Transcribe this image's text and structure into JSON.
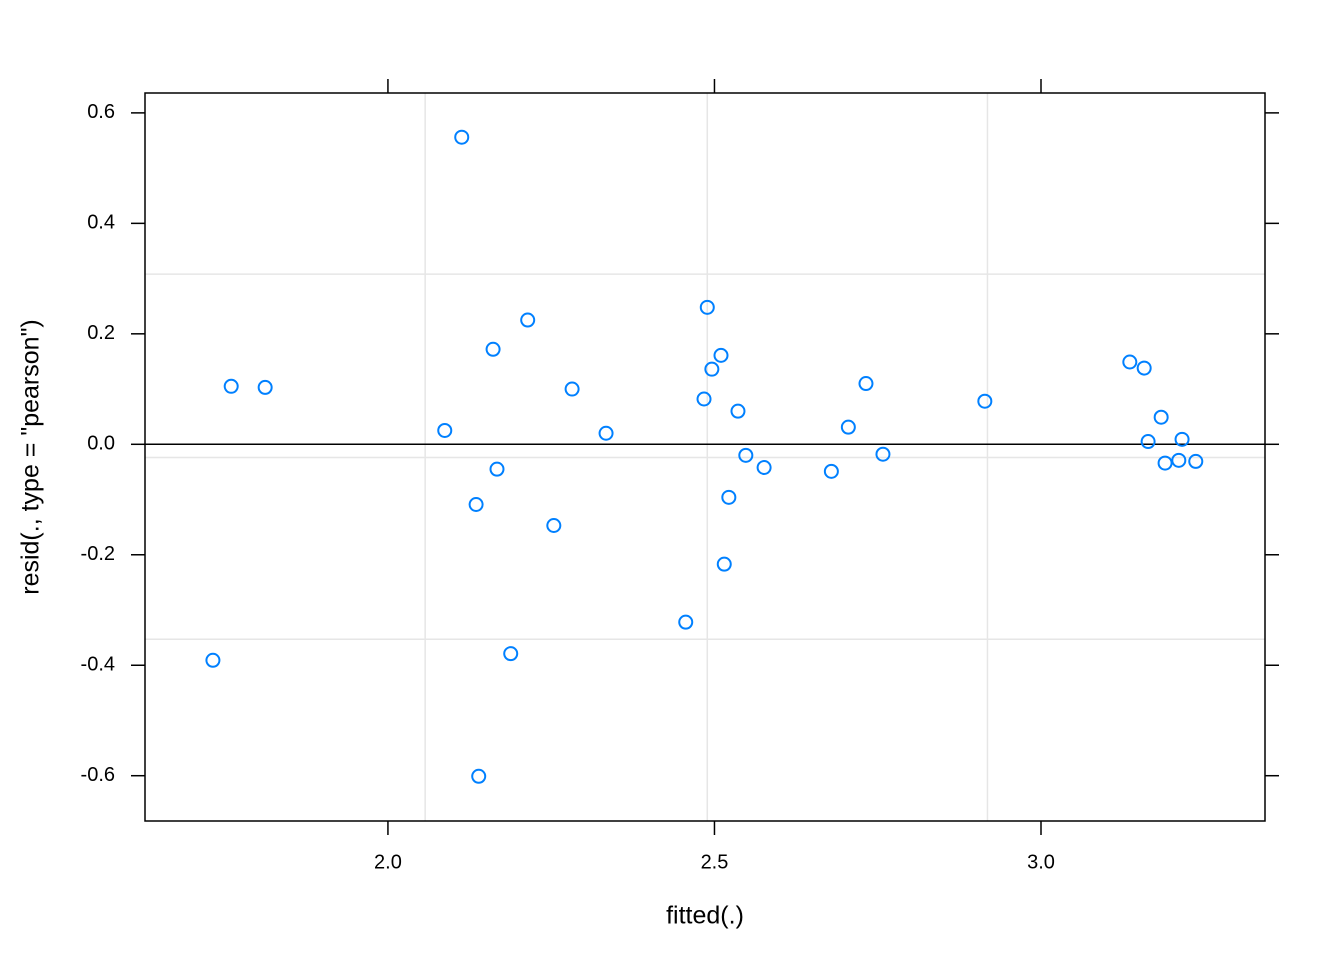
{
  "chart_data": {
    "type": "scatter",
    "x_label": "fitted(.)",
    "y_label": "resid(., type = \"pearson\")",
    "color": "#0080ff",
    "xlim": [
      1.628,
      3.343
    ],
    "ylim": [
      -0.682,
      0.636
    ],
    "xticks": [
      {
        "value": 2,
        "label": "2.0"
      },
      {
        "value": 2.5,
        "label": "2.5"
      },
      {
        "value": 3,
        "label": "3.0"
      }
    ],
    "yticks": [
      0.6,
      0.4,
      0.2,
      {
        "value": 0,
        "label": "0.0"
      },
      -0.2,
      -0.4,
      -0.6
    ],
    "xgrid": [
      2.057,
      2.489,
      2.918
    ],
    "ygrid": [
      0.308,
      -0.024,
      -0.353
    ],
    "hline": 0,
    "x": [
      1.732,
      1.76,
      1.812,
      2.087,
      2.113,
      2.135,
      2.139,
      2.161,
      2.167,
      2.188,
      2.214,
      2.254,
      2.282,
      2.334,
      2.456,
      2.484,
      2.489,
      2.496,
      2.51,
      2.515,
      2.522,
      2.536,
      2.548,
      2.576,
      2.679,
      2.705,
      2.732,
      2.758,
      2.914,
      3.136,
      3.158,
      3.164,
      3.184,
      3.19,
      3.211,
      3.216,
      3.237
    ],
    "values": [
      -0.391,
      0.105,
      0.103,
      0.025,
      0.556,
      -0.109,
      -0.601,
      0.172,
      -0.045,
      -0.379,
      0.225,
      -0.147,
      0.1,
      0.02,
      -0.322,
      0.082,
      0.248,
      0.136,
      0.161,
      -0.217,
      -0.096,
      0.06,
      -0.02,
      -0.042,
      -0.049,
      0.031,
      0.11,
      -0.018,
      0.078,
      0.149,
      0.138,
      0.005,
      0.049,
      -0.034,
      -0.029,
      0.009,
      -0.031
    ]
  }
}
